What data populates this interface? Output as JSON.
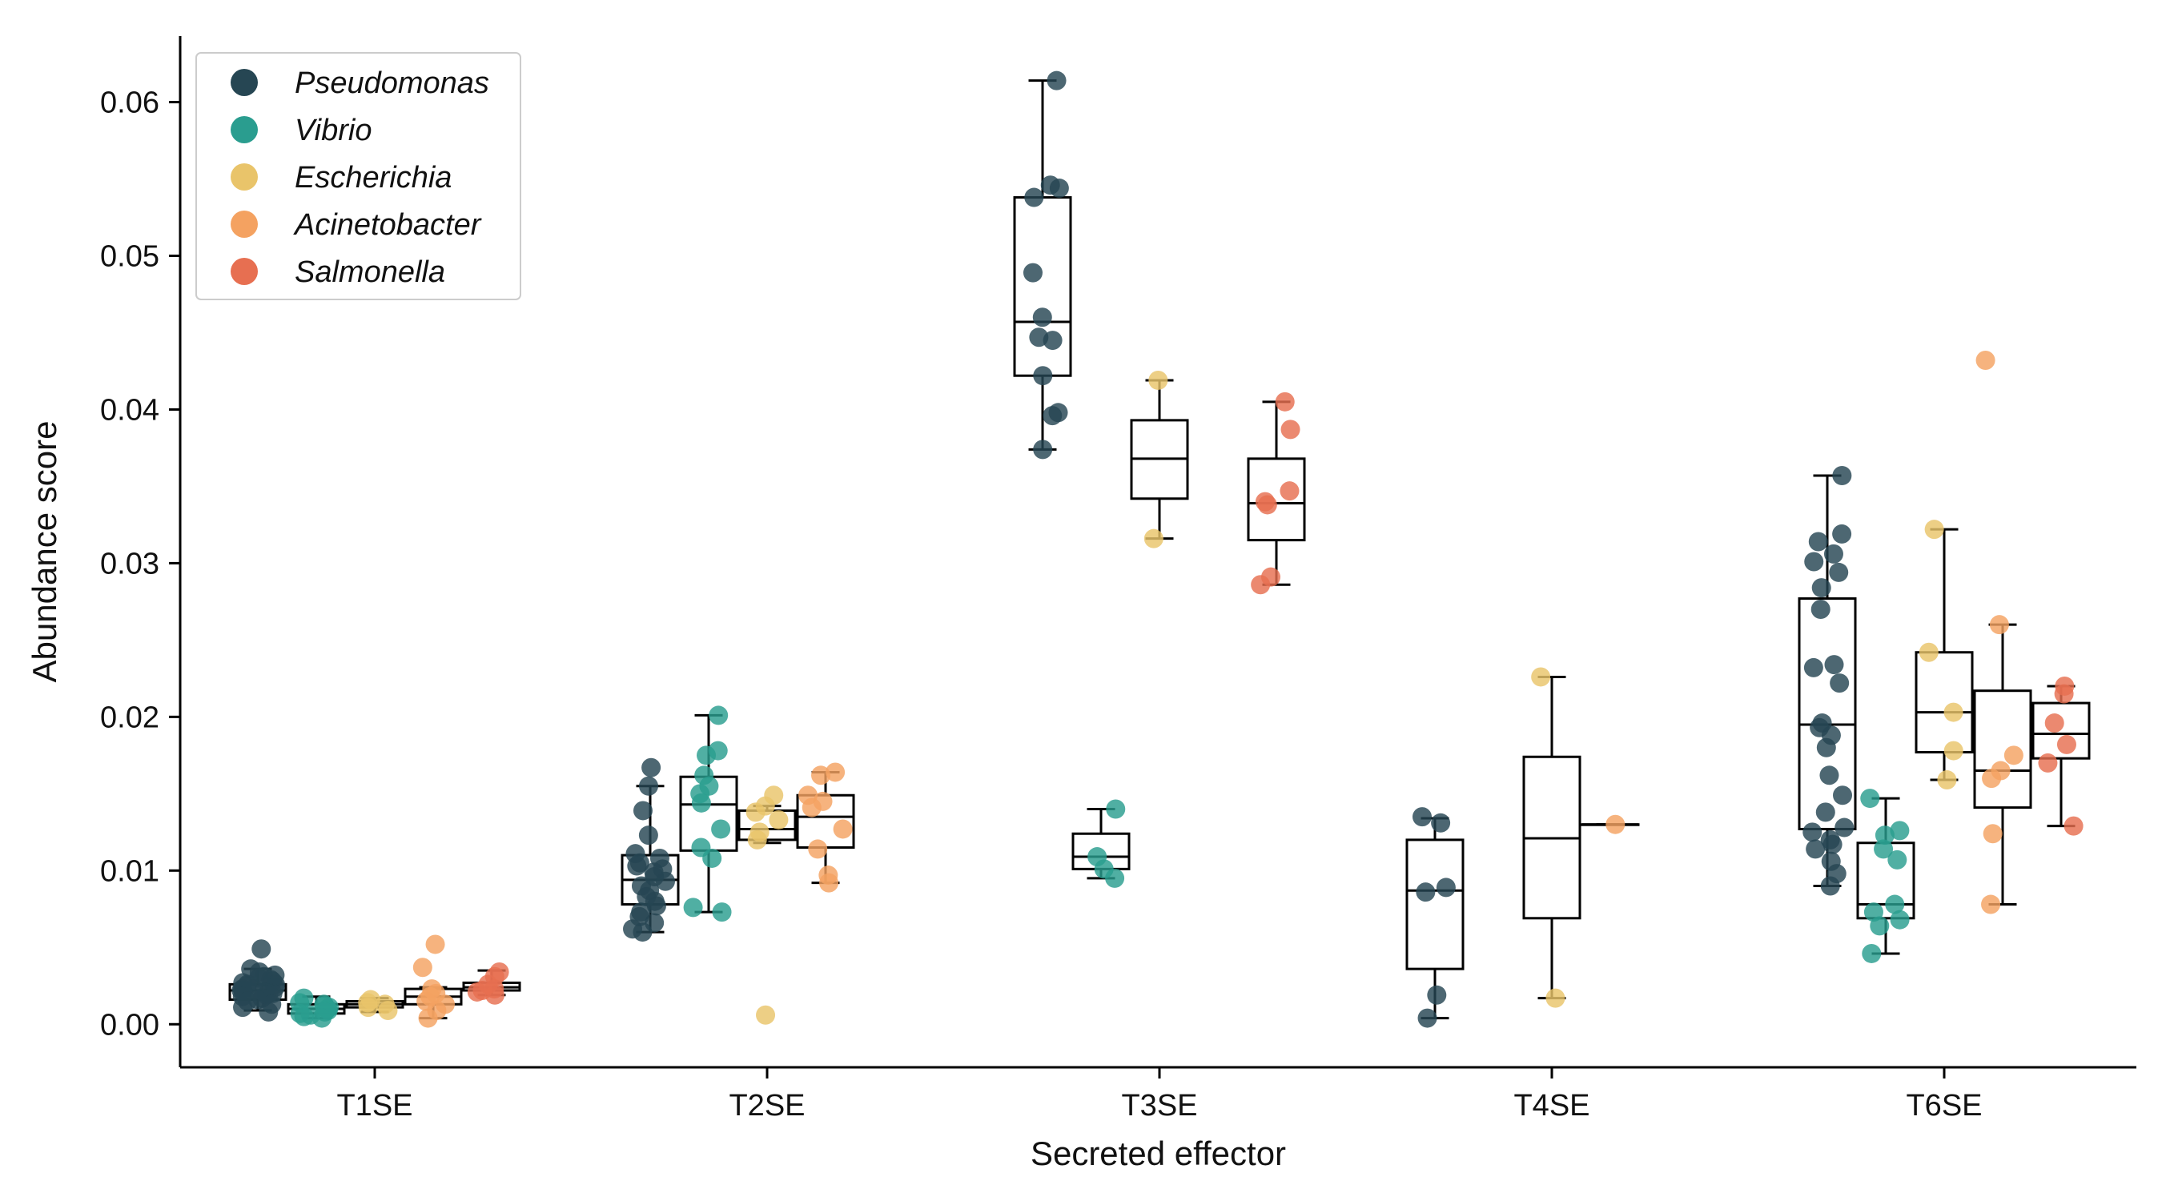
{
  "chart_data": {
    "type": "box",
    "title": "",
    "xlabel": "Secreted effector",
    "ylabel": "Abundance score",
    "ylim": [
      -0.0028,
      0.0643
    ],
    "yticks": [
      0.0,
      0.01,
      0.02,
      0.03,
      0.04,
      0.05,
      0.06
    ],
    "ytick_labels": [
      "0.00",
      "0.01",
      "0.02",
      "0.03",
      "0.04",
      "0.05",
      "0.06"
    ],
    "categories": [
      "T1SE",
      "T2SE",
      "T3SE",
      "T4SE",
      "T6SE"
    ],
    "legend_position": "top-left",
    "grid": false,
    "series": [
      {
        "name": "Pseudomonas",
        "color": "#264653"
      },
      {
        "name": "Vibrio",
        "color": "#2a9d8f"
      },
      {
        "name": "Escherichia",
        "color": "#e9c46a"
      },
      {
        "name": "Acinetobacter",
        "color": "#f4a261"
      },
      {
        "name": "Salmonella",
        "color": "#e76f51"
      }
    ],
    "groups": [
      {
        "category": "T1SE",
        "series": "Pseudomonas",
        "box": {
          "whisker_low": 0.0009,
          "q1": 0.0016,
          "median": 0.0022,
          "q3": 0.0026,
          "whisker_high": 0.0036
        },
        "points": [
          0.0049,
          0.0036,
          0.0034,
          0.0032,
          0.0031,
          0.003,
          0.0029,
          0.0028,
          0.0027,
          0.0026,
          0.0026,
          0.0025,
          0.0024,
          0.0023,
          0.0023,
          0.0022,
          0.0022,
          0.0021,
          0.002,
          0.002,
          0.0019,
          0.0018,
          0.0017,
          0.0016,
          0.0015,
          0.0013,
          0.0011,
          0.0008
        ]
      },
      {
        "category": "T1SE",
        "series": "Vibrio",
        "box": {
          "whisker_low": 0.0004,
          "q1": 0.0007,
          "median": 0.001,
          "q3": 0.0013,
          "whisker_high": 0.0018
        },
        "points": [
          0.0017,
          0.0014,
          0.0013,
          0.0012,
          0.0011,
          0.001,
          0.0009,
          0.0008,
          0.0007,
          0.0006,
          0.0005,
          0.0004
        ]
      },
      {
        "category": "T1SE",
        "series": "Escherichia",
        "box": {
          "whisker_low": 0.0008,
          "q1": 0.0011,
          "median": 0.0013,
          "q3": 0.0015,
          "whisker_high": 0.0017
        },
        "points": [
          0.0016,
          0.0014,
          0.0013,
          0.0011,
          0.0009
        ]
      },
      {
        "category": "T1SE",
        "series": "Acinetobacter",
        "box": {
          "whisker_low": 0.0004,
          "q1": 0.0013,
          "median": 0.0018,
          "q3": 0.0023,
          "whisker_high": 0.0024
        },
        "points": [
          0.0052,
          0.0037,
          0.0023,
          0.002,
          0.0018,
          0.0015,
          0.0013,
          0.0009,
          0.0004
        ]
      },
      {
        "category": "T1SE",
        "series": "Salmonella",
        "box": {
          "whisker_low": 0.0019,
          "q1": 0.0022,
          "median": 0.0024,
          "q3": 0.0027,
          "whisker_high": 0.0035
        },
        "points": [
          0.0034,
          0.0031,
          0.0026,
          0.0023,
          0.0022,
          0.0021,
          0.0019
        ]
      },
      {
        "category": "T2SE",
        "series": "Pseudomonas",
        "box": {
          "whisker_low": 0.006,
          "q1": 0.0078,
          "median": 0.0094,
          "q3": 0.011,
          "whisker_high": 0.0155
        },
        "points": [
          0.0167,
          0.0155,
          0.0139,
          0.0123,
          0.0111,
          0.0108,
          0.0105,
          0.0103,
          0.0101,
          0.0099,
          0.0096,
          0.0093,
          0.009,
          0.0087,
          0.0083,
          0.008,
          0.0077,
          0.0073,
          0.007,
          0.0066,
          0.0062,
          0.006
        ]
      },
      {
        "category": "T2SE",
        "series": "Vibrio",
        "box": {
          "whisker_low": 0.0073,
          "q1": 0.0113,
          "median": 0.0143,
          "q3": 0.0161,
          "whisker_high": 0.0201
        },
        "points": [
          0.0201,
          0.0178,
          0.0175,
          0.0162,
          0.0155,
          0.015,
          0.0144,
          0.0127,
          0.0115,
          0.0108,
          0.0076,
          0.0073
        ]
      },
      {
        "category": "T2SE",
        "series": "Escherichia",
        "box": {
          "whisker_low": 0.0118,
          "q1": 0.012,
          "median": 0.0127,
          "q3": 0.0139,
          "whisker_high": 0.0142
        },
        "points": [
          0.0149,
          0.0142,
          0.0138,
          0.0133,
          0.0125,
          0.012,
          0.0006
        ]
      },
      {
        "category": "T2SE",
        "series": "Acinetobacter",
        "box": {
          "whisker_low": 0.0092,
          "q1": 0.0115,
          "median": 0.0135,
          "q3": 0.0149,
          "whisker_high": 0.0164
        },
        "points": [
          0.0164,
          0.0162,
          0.0149,
          0.0145,
          0.0141,
          0.0127,
          0.0114,
          0.0097,
          0.0092
        ]
      },
      {
        "category": "T3SE",
        "series": "Pseudomonas",
        "box": {
          "whisker_low": 0.0374,
          "q1": 0.0422,
          "median": 0.0457,
          "q3": 0.0538,
          "whisker_high": 0.0614
        },
        "points": [
          0.0614,
          0.0546,
          0.0544,
          0.0538,
          0.0489,
          0.046,
          0.0447,
          0.0445,
          0.0422,
          0.0398,
          0.0396,
          0.0374
        ]
      },
      {
        "category": "T3SE",
        "series": "Vibrio",
        "box": {
          "whisker_low": 0.0095,
          "q1": 0.0101,
          "median": 0.0109,
          "q3": 0.0124,
          "whisker_high": 0.014
        },
        "points": [
          0.014,
          0.0109,
          0.0101,
          0.0095
        ]
      },
      {
        "category": "T3SE",
        "series": "Escherichia",
        "box": {
          "whisker_low": 0.0316,
          "q1": 0.0342,
          "median": 0.0368,
          "q3": 0.0393,
          "whisker_high": 0.0419
        },
        "points": [
          0.0419,
          0.0316
        ]
      },
      {
        "category": "T3SE",
        "series": "Salmonella",
        "box": {
          "whisker_low": 0.0286,
          "q1": 0.0315,
          "median": 0.0339,
          "q3": 0.0368,
          "whisker_high": 0.0405
        },
        "points": [
          0.0405,
          0.0387,
          0.0347,
          0.034,
          0.0338,
          0.0291,
          0.0286
        ]
      },
      {
        "category": "T4SE",
        "series": "Pseudomonas",
        "box": {
          "whisker_low": 0.0004,
          "q1": 0.0036,
          "median": 0.0087,
          "q3": 0.012,
          "whisker_high": 0.0134
        },
        "points": [
          0.0135,
          0.0131,
          0.0089,
          0.0086,
          0.0019,
          0.0004
        ]
      },
      {
        "category": "T4SE",
        "series": "Escherichia",
        "box": {
          "whisker_low": 0.0017,
          "q1": 0.0069,
          "median": 0.0121,
          "q3": 0.0174,
          "whisker_high": 0.0226
        },
        "points": [
          0.0226,
          0.0017
        ]
      },
      {
        "category": "T4SE",
        "series": "Acinetobacter",
        "box": {
          "whisker_low": 0.013,
          "q1": 0.013,
          "median": 0.013,
          "q3": 0.013,
          "whisker_high": 0.013
        },
        "points": [
          0.013
        ]
      },
      {
        "category": "T6SE",
        "series": "Pseudomonas",
        "box": {
          "whisker_low": 0.009,
          "q1": 0.0127,
          "median": 0.0195,
          "q3": 0.0277,
          "whisker_high": 0.0357
        },
        "points": [
          0.0357,
          0.0319,
          0.0314,
          0.0306,
          0.0301,
          0.0294,
          0.0284,
          0.027,
          0.0234,
          0.0232,
          0.0222,
          0.0196,
          0.0193,
          0.0188,
          0.018,
          0.0162,
          0.0149,
          0.0138,
          0.0128,
          0.0125,
          0.012,
          0.0117,
          0.0114,
          0.0106,
          0.0098,
          0.009
        ]
      },
      {
        "category": "T6SE",
        "series": "Vibrio",
        "box": {
          "whisker_low": 0.0046,
          "q1": 0.0069,
          "median": 0.0078,
          "q3": 0.0118,
          "whisker_high": 0.0147
        },
        "points": [
          0.0147,
          0.0126,
          0.0123,
          0.0114,
          0.0107,
          0.0078,
          0.0073,
          0.0068,
          0.0064,
          0.0046
        ]
      },
      {
        "category": "T6SE",
        "series": "Escherichia",
        "box": {
          "whisker_low": 0.0159,
          "q1": 0.0177,
          "median": 0.0203,
          "q3": 0.0242,
          "whisker_high": 0.0322
        },
        "points": [
          0.0322,
          0.0242,
          0.0203,
          0.0178,
          0.0159
        ]
      },
      {
        "category": "T6SE",
        "series": "Acinetobacter",
        "box": {
          "whisker_low": 0.0078,
          "q1": 0.0141,
          "median": 0.0165,
          "q3": 0.0217,
          "whisker_high": 0.026
        },
        "points": [
          0.0432,
          0.026,
          0.0175,
          0.0165,
          0.016,
          0.0124,
          0.0078
        ]
      },
      {
        "category": "T6SE",
        "series": "Salmonella",
        "box": {
          "whisker_low": 0.0129,
          "q1": 0.0173,
          "median": 0.0189,
          "q3": 0.0209,
          "whisker_high": 0.022
        },
        "points": [
          0.022,
          0.0215,
          0.0196,
          0.0182,
          0.017,
          0.0129
        ]
      }
    ]
  }
}
